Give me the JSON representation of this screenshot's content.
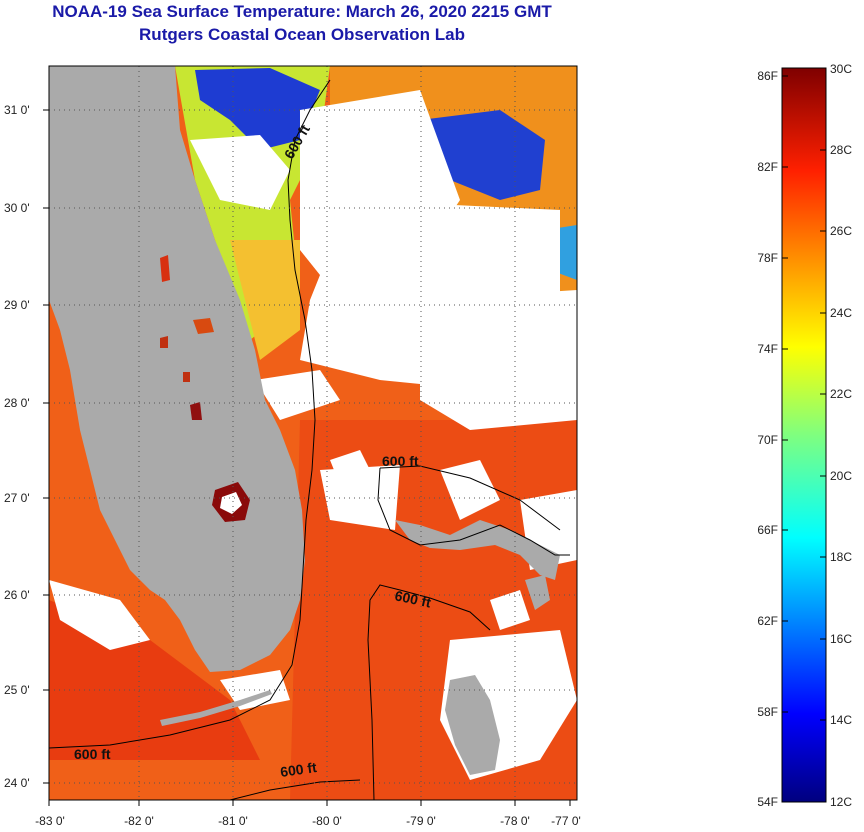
{
  "header": {
    "title": "NOAA-19 Sea Surface Temperature:  March 26, 2020 2215 GMT",
    "subtitle": "Rutgers Coastal Ocean Observation Lab"
  },
  "map": {
    "lat_ticks": [
      "31 0'",
      "30 0'",
      "29 0'",
      "28 0'",
      "27 0'",
      "26 0'",
      "25 0'",
      "24 0'"
    ],
    "lon_ticks": [
      "-83 0'",
      "-82 0'",
      "-81 0'",
      "-80 0'",
      "-79 0'",
      "-78 0'",
      "-77 0'"
    ],
    "isobath_labels": [
      "600 ft",
      "600 ft",
      "600 ft",
      "600 ft",
      "600 ft"
    ],
    "colors": {
      "land": "#aaaaaa",
      "cloud": "#ffffff",
      "warm_water": "#f05a14",
      "cool_water": "#c8e632",
      "cold_water": "#1e3cd2"
    }
  },
  "colorbar": {
    "fahrenheit_labels": [
      "86F",
      "82F",
      "78F",
      "74F",
      "70F",
      "66F",
      "62F",
      "58F",
      "54F"
    ],
    "celsius_labels": [
      "30C",
      "28C",
      "26C",
      "24C",
      "22C",
      "20C",
      "18C",
      "16C",
      "14C",
      "12C"
    ],
    "range_c": [
      12,
      30
    ],
    "colormap": "jet"
  }
}
